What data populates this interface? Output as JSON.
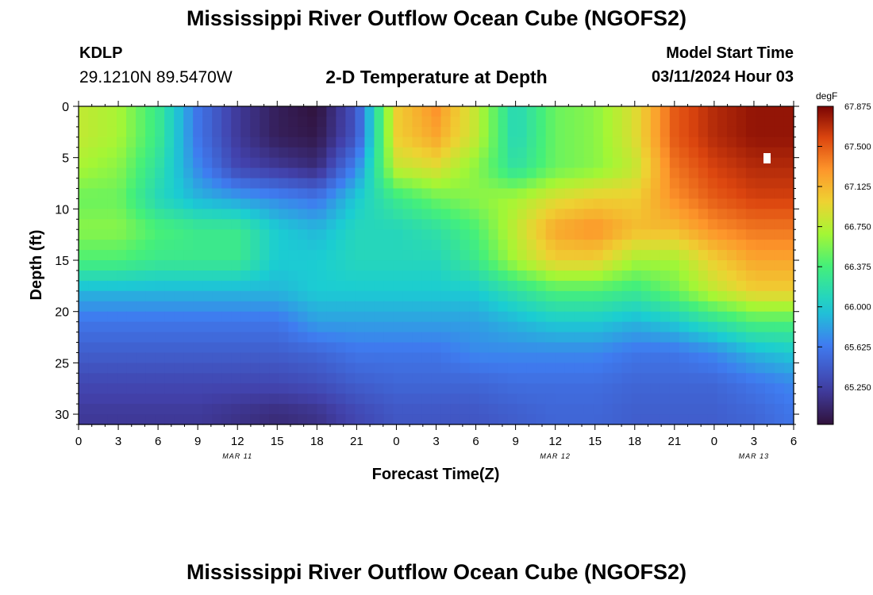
{
  "header": {
    "title": "Mississippi River Outflow Ocean Cube (NGOFS2)",
    "station_id": "KDLP",
    "station_coords": "29.1210N  89.5470W",
    "subtitle": "2-D Temperature at Depth",
    "model_start_label": "Model Start Time",
    "model_start_value": "03/11/2024 Hour 03"
  },
  "footer": {
    "title": "Mississippi River Outflow Ocean Cube (NGOFS2)"
  },
  "chart_data": {
    "type": "heatmap",
    "title": "2-D Temperature at Depth",
    "xlabel": "Forecast Time(Z)",
    "ylabel": "Depth (ft)",
    "x_unit": "hours from 00Z Mar 11",
    "x_range": [
      0,
      54
    ],
    "x_tick_labels": [
      "0",
      "3",
      "6",
      "9",
      "12",
      "15",
      "18",
      "21",
      "0",
      "3",
      "6",
      "9",
      "12",
      "15",
      "18",
      "21",
      "0",
      "3",
      "6"
    ],
    "x_tick_values": [
      0,
      3,
      6,
      9,
      12,
      15,
      18,
      21,
      24,
      27,
      30,
      33,
      36,
      39,
      42,
      45,
      48,
      51,
      54
    ],
    "date_labels": [
      {
        "label": "MAR 11",
        "x": 12
      },
      {
        "label": "MAR 12",
        "x": 36
      },
      {
        "label": "MAR 13",
        "x": 51
      }
    ],
    "y_range": [
      0,
      31
    ],
    "y_inverted": true,
    "y_ticks": [
      0,
      5,
      10,
      15,
      20,
      25,
      30
    ],
    "colorbar": {
      "unit": "degF",
      "min": 64.9,
      "max": 67.875,
      "tick_values": [
        65.25,
        65.625,
        66.0,
        66.375,
        66.75,
        67.125,
        67.5,
        67.875
      ],
      "tick_labels": [
        "65.250",
        "65.625",
        "66.000",
        "66.375",
        "66.750",
        "67.125",
        "67.500",
        "67.875"
      ]
    },
    "depths_ft": [
      0,
      3,
      6,
      9,
      12,
      15,
      18,
      21,
      24,
      27,
      30
    ],
    "times_hr": [
      0,
      3,
      6,
      9,
      12,
      15,
      18,
      21,
      24,
      27,
      30,
      33,
      36,
      39,
      42,
      45,
      48,
      51,
      54
    ],
    "values_degF": [
      [
        66.8,
        66.7,
        66.3,
        65.6,
        65.2,
        65.0,
        64.9,
        65.4,
        67.0,
        67.3,
        66.8,
        66.1,
        66.5,
        66.6,
        66.9,
        67.5,
        67.7,
        67.8,
        67.8
      ],
      [
        66.8,
        66.7,
        66.3,
        65.6,
        65.2,
        65.0,
        64.95,
        65.4,
        67.0,
        67.2,
        66.8,
        66.1,
        66.5,
        66.6,
        66.9,
        67.5,
        67.7,
        67.8,
        67.8
      ],
      [
        66.7,
        66.6,
        66.2,
        65.7,
        65.3,
        65.2,
        65.1,
        65.7,
        66.8,
        66.9,
        66.6,
        66.2,
        66.5,
        66.6,
        66.8,
        67.4,
        67.6,
        67.7,
        67.7
      ],
      [
        66.5,
        66.5,
        66.1,
        65.9,
        65.8,
        65.7,
        65.6,
        66.0,
        66.3,
        66.5,
        66.6,
        66.7,
        66.9,
        67.0,
        67.0,
        67.3,
        67.5,
        67.6,
        67.6
      ],
      [
        66.6,
        66.6,
        66.4,
        66.3,
        66.3,
        66.0,
        65.9,
        66.1,
        66.1,
        66.2,
        66.4,
        66.8,
        67.2,
        67.3,
        67.1,
        67.1,
        67.3,
        67.4,
        67.4
      ],
      [
        66.4,
        66.4,
        66.3,
        66.3,
        66.3,
        66.0,
        66.0,
        66.1,
        66.1,
        66.1,
        66.3,
        66.7,
        67.0,
        67.0,
        66.7,
        66.7,
        67.0,
        67.2,
        67.2
      ],
      [
        65.9,
        65.9,
        65.9,
        65.9,
        65.9,
        65.9,
        66.0,
        66.0,
        66.0,
        66.0,
        66.0,
        66.2,
        66.4,
        66.4,
        66.3,
        66.5,
        66.8,
        67.0,
        67.0
      ],
      [
        65.6,
        65.6,
        65.6,
        65.6,
        65.6,
        65.6,
        65.8,
        65.8,
        65.8,
        65.8,
        65.8,
        65.9,
        66.0,
        66.0,
        65.9,
        66.0,
        66.2,
        66.4,
        66.4
      ],
      [
        65.45,
        65.45,
        65.45,
        65.45,
        65.45,
        65.45,
        65.5,
        65.6,
        65.6,
        65.6,
        65.7,
        65.7,
        65.7,
        65.7,
        65.6,
        65.6,
        65.7,
        65.9,
        66.0
      ],
      [
        65.3,
        65.3,
        65.3,
        65.3,
        65.3,
        65.3,
        65.35,
        65.45,
        65.5,
        65.5,
        65.5,
        65.55,
        65.55,
        65.55,
        65.5,
        65.5,
        65.5,
        65.6,
        65.7
      ],
      [
        65.2,
        65.2,
        65.2,
        65.2,
        65.15,
        65.1,
        65.15,
        65.3,
        65.4,
        65.4,
        65.4,
        65.45,
        65.5,
        65.5,
        65.45,
        65.45,
        65.45,
        65.5,
        65.6
      ]
    ]
  }
}
